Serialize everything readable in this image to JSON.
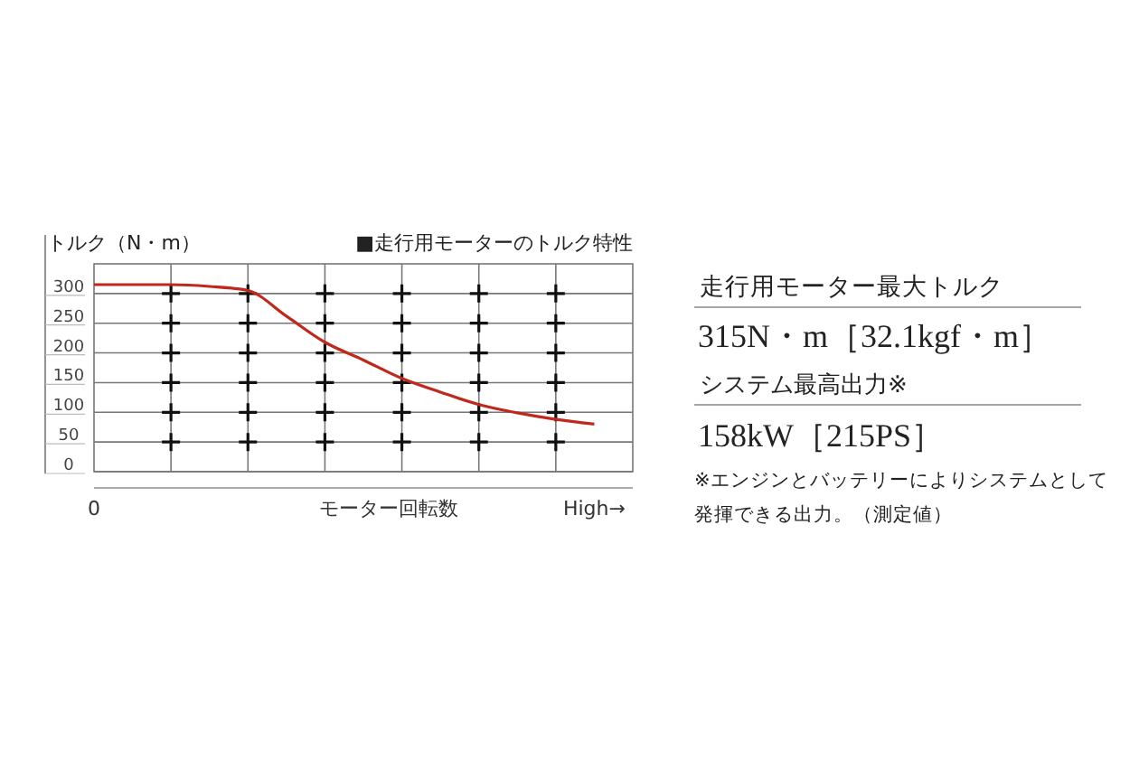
{
  "chart_data": {
    "type": "line",
    "ylabel": "トルク（N・m）",
    "xlabel": "モーター回転数",
    "categories": [
      "0",
      null,
      null,
      null,
      null,
      null,
      null,
      null,
      null,
      null,
      null,
      null,
      null,
      "High→"
    ],
    "series": [
      {
        "color": "#c0281c",
        "values": [
          315,
          315,
          315,
          312,
          305,
          262,
          218,
          188,
          157,
          134,
          113,
          99,
          88,
          80
        ]
      }
    ],
    "ylim": [
      0,
      350
    ],
    "yticks": [
      0,
      50,
      100,
      150,
      200,
      250,
      300
    ],
    "grid": true,
    "marker": "none",
    "line_style": "solid",
    "annotations": [
      "■走行用モーターのトルク特性",
      "走行用モーター最大トルク",
      "315N・m［32.1kgf・m］",
      "システム最高出力※",
      "158kW［215PS］",
      "※エンジンとバッテリーによりシステムとして",
      "発揮できる出力。（測定値）"
    ]
  }
}
